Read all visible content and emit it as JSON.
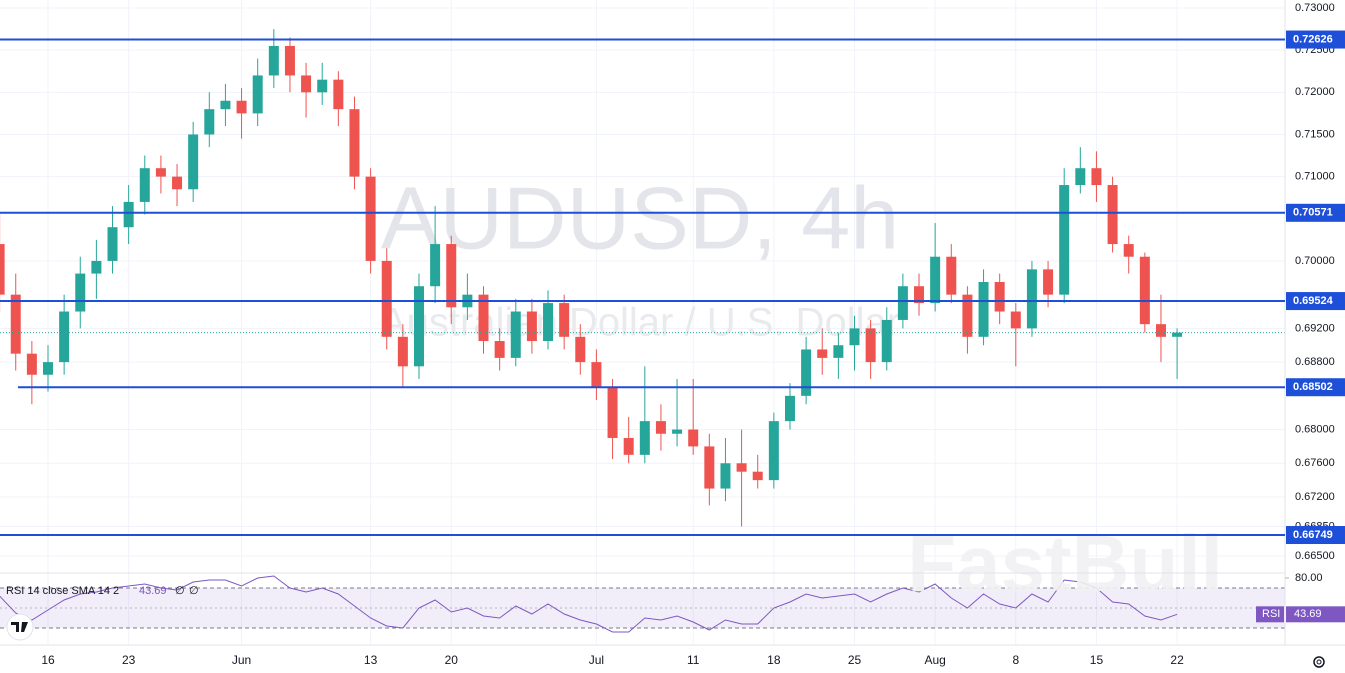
{
  "chart_data": [
    {
      "type": "candlestick",
      "title": "AUDUSD, 4h",
      "subtitle": "Australian Dollar / U.S. Dollar",
      "watermark": "FastBull",
      "categories": [
        null,
        null,
        null,
        "16",
        null,
        null,
        null,
        null,
        "23",
        null,
        null,
        null,
        null,
        null,
        null,
        "Jun",
        null,
        null,
        null,
        null,
        null,
        null,
        null,
        "13",
        null,
        null,
        null,
        null,
        "20",
        null,
        null,
        null,
        null,
        null,
        null,
        null,
        null,
        "Jul",
        null,
        null,
        null,
        null,
        null,
        "11",
        null,
        null,
        null,
        null,
        "18",
        null,
        null,
        null,
        null,
        "25",
        null,
        null,
        null,
        null,
        "Aug",
        null,
        null,
        null,
        null,
        "8",
        null,
        null,
        null,
        null,
        "15",
        null,
        null,
        null,
        null,
        "22"
      ],
      "open": [
        0.702,
        0.696,
        0.689,
        0.6865,
        0.688,
        0.694,
        0.6985,
        0.7,
        0.704,
        0.707,
        0.711,
        0.71,
        0.7085,
        0.715,
        0.718,
        0.719,
        0.7175,
        0.722,
        0.7255,
        0.722,
        0.72,
        0.7215,
        0.718,
        0.71,
        0.7,
        0.691,
        0.6875,
        0.697,
        0.702,
        0.6945,
        0.696,
        0.6905,
        0.6885,
        0.694,
        0.6905,
        0.695,
        0.691,
        0.688,
        0.685,
        0.679,
        0.677,
        0.681,
        0.6795,
        0.68,
        0.678,
        0.673,
        0.676,
        0.675,
        0.674,
        0.681,
        0.684,
        0.6895,
        0.6885,
        0.69,
        0.692,
        0.688,
        0.693,
        0.697,
        0.695,
        0.7005,
        0.696,
        0.691,
        0.6975,
        0.694,
        0.692,
        0.699,
        0.696,
        0.709,
        0.711,
        0.709,
        0.702,
        0.7005,
        0.6925,
        0.691
      ],
      "high": [
        0.7055,
        0.6985,
        0.6905,
        0.69,
        0.696,
        0.7005,
        0.7025,
        0.7065,
        0.709,
        0.7125,
        0.7125,
        0.7115,
        0.7165,
        0.72,
        0.721,
        0.7205,
        0.724,
        0.7275,
        0.7265,
        0.7235,
        0.7235,
        0.7225,
        0.7195,
        0.711,
        0.7015,
        0.6925,
        0.6985,
        0.7065,
        0.703,
        0.6985,
        0.697,
        0.692,
        0.6955,
        0.6955,
        0.6965,
        0.696,
        0.6925,
        0.6895,
        0.686,
        0.6815,
        0.6875,
        0.683,
        0.686,
        0.686,
        0.6795,
        0.679,
        0.68,
        0.677,
        0.682,
        0.6855,
        0.691,
        0.692,
        0.6915,
        0.6935,
        0.693,
        0.6945,
        0.6985,
        0.6985,
        0.7045,
        0.702,
        0.697,
        0.699,
        0.6985,
        0.695,
        0.7,
        0.7,
        0.711,
        0.7135,
        0.713,
        0.71,
        0.703,
        0.701,
        0.696,
        0.692
      ],
      "low": [
        0.694,
        0.687,
        0.683,
        0.6845,
        0.6865,
        0.692,
        0.6955,
        0.6985,
        0.702,
        0.7055,
        0.708,
        0.7065,
        0.707,
        0.7135,
        0.716,
        0.7145,
        0.716,
        0.7205,
        0.72,
        0.717,
        0.7185,
        0.716,
        0.7085,
        0.6985,
        0.6895,
        0.685,
        0.686,
        0.695,
        0.6925,
        0.693,
        0.689,
        0.687,
        0.6875,
        0.689,
        0.6895,
        0.6895,
        0.6865,
        0.6835,
        0.6765,
        0.676,
        0.676,
        0.6775,
        0.678,
        0.677,
        0.671,
        0.6715,
        0.6685,
        0.673,
        0.673,
        0.68,
        0.683,
        0.6865,
        0.686,
        0.687,
        0.686,
        0.687,
        0.692,
        0.6935,
        0.694,
        0.695,
        0.689,
        0.69,
        0.6925,
        0.6875,
        0.691,
        0.6945,
        0.695,
        0.708,
        0.707,
        0.701,
        0.6985,
        0.6915,
        0.688,
        0.686
      ],
      "close": [
        0.696,
        0.689,
        0.6865,
        0.688,
        0.694,
        0.6985,
        0.7,
        0.704,
        0.707,
        0.711,
        0.71,
        0.7085,
        0.715,
        0.718,
        0.719,
        0.7175,
        0.722,
        0.7255,
        0.722,
        0.72,
        0.7215,
        0.718,
        0.71,
        0.7,
        0.691,
        0.6875,
        0.697,
        0.702,
        0.6945,
        0.696,
        0.6905,
        0.6885,
        0.694,
        0.6905,
        0.695,
        0.691,
        0.688,
        0.685,
        0.679,
        0.677,
        0.681,
        0.6795,
        0.68,
        0.678,
        0.673,
        0.676,
        0.675,
        0.674,
        0.681,
        0.684,
        0.6895,
        0.6885,
        0.69,
        0.692,
        0.688,
        0.693,
        0.697,
        0.695,
        0.7005,
        0.696,
        0.691,
        0.6975,
        0.694,
        0.692,
        0.699,
        0.696,
        0.709,
        0.711,
        0.709,
        0.702,
        0.7005,
        0.6925,
        0.691,
        0.6915
      ],
      "up_color": "#26a69a",
      "down_color": "#ef5350",
      "ylim": [
        0.66334,
        0.73095
      ],
      "yticks": [
        {
          "value": 0.73,
          "label": "0.73000"
        },
        {
          "value": 0.725,
          "label": "0.72500"
        },
        {
          "value": 0.72,
          "label": "0.72000"
        },
        {
          "value": 0.715,
          "label": "0.71500"
        },
        {
          "value": 0.71,
          "label": "0.71000"
        },
        {
          "value": 0.7,
          "label": "0.70000"
        },
        {
          "value": 0.692,
          "label": "0.69200"
        },
        {
          "value": 0.688,
          "label": "0.68800"
        },
        {
          "value": 0.68,
          "label": "0.68000"
        },
        {
          "value": 0.676,
          "label": "0.67600"
        },
        {
          "value": 0.672,
          "label": "0.67200"
        },
        {
          "value": 0.6685,
          "label": "0.66850"
        },
        {
          "value": 0.665,
          "label": "0.66500"
        }
      ],
      "levels": {
        "values": [
          0.72626,
          0.70571,
          0.69524,
          0.68502,
          0.66749
        ],
        "color": "#1e4fd8"
      },
      "grid": true
    },
    {
      "type": "line",
      "name": "RSI",
      "legend": "RSI 14 close SMA 14 2",
      "empty_values": [
        "∅",
        "∅"
      ],
      "values": [
        62,
        45,
        38,
        48,
        58,
        64,
        66,
        70,
        72,
        74,
        70,
        68,
        76,
        78,
        78,
        72,
        80,
        82,
        70,
        66,
        70,
        64,
        52,
        40,
        32,
        30,
        50,
        58,
        46,
        50,
        42,
        40,
        52,
        44,
        54,
        44,
        38,
        34,
        26,
        26,
        40,
        38,
        42,
        36,
        28,
        38,
        34,
        34,
        50,
        56,
        64,
        60,
        62,
        64,
        56,
        64,
        70,
        66,
        74,
        60,
        50,
        64,
        54,
        50,
        64,
        56,
        78,
        76,
        70,
        56,
        54,
        42,
        38,
        43.69
      ],
      "color": "#7e57c2",
      "ylim": [
        17,
        84
      ],
      "yticks": [
        {
          "value": 80,
          "label": "80.00"
        }
      ],
      "bands": [
        70,
        30
      ],
      "midline": 50
    }
  ]
}
